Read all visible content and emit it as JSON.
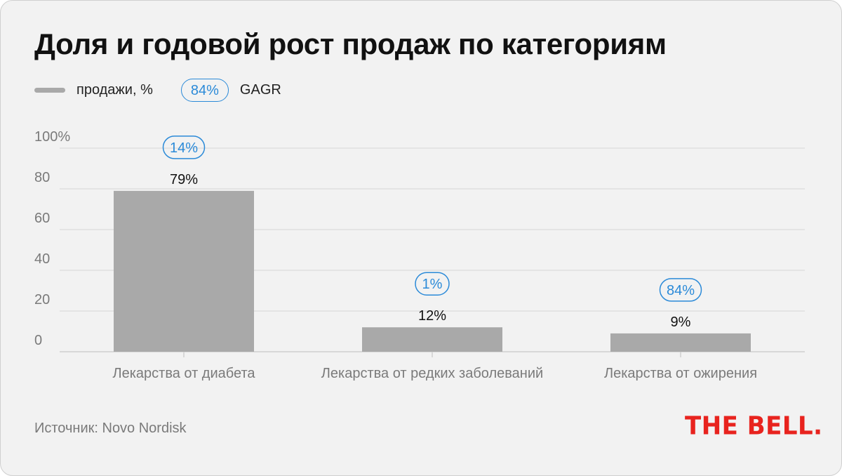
{
  "title": "Доля и годовой рост продаж по категориям",
  "legend": {
    "series_label": "продажи, %",
    "growth_sample": "84%",
    "growth_label": "GAGR"
  },
  "colors": {
    "bar": "#a9a9a9",
    "accent": "#2b8ad8",
    "grid": "#d7d7d7",
    "logo": "#e8231e"
  },
  "chart_data": {
    "type": "bar",
    "categories": [
      "Лекарства от диабета",
      "Лекарства от редких заболеваний",
      "Лекарства от ожирения"
    ],
    "series": [
      {
        "name": "продажи, %",
        "values": [
          79,
          12,
          9
        ]
      }
    ],
    "value_labels": [
      "79%",
      "12%",
      "9%"
    ],
    "growth_labels": [
      "14%",
      "1%",
      "84%"
    ],
    "yticks": [
      "0",
      "20",
      "40",
      "60",
      "80",
      "100%"
    ],
    "ylim": [
      0,
      100
    ],
    "grid": true,
    "legend_position": "top-left"
  },
  "source": "Источник: Novo Nordisk",
  "logo": "THE BELL."
}
